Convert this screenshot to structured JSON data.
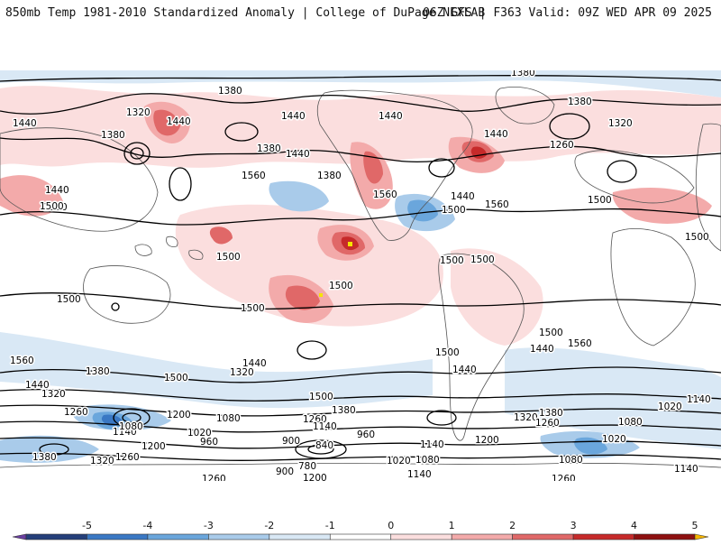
{
  "header": {
    "title_left": "850mb Temp 1981-2010 Standardized Anomaly | College of DuPage NEXLAB",
    "title_right": "06Z GFS | F363 Valid: 09Z WED APR 09 2025"
  },
  "colorbar": {
    "ticks": [
      "-5",
      "-4",
      "-3",
      "-2",
      "-1",
      "0",
      "1",
      "2",
      "3",
      "4",
      "5"
    ],
    "colors": [
      "#6a3fa0",
      "#243f7a",
      "#3a78c4",
      "#6aa6dc",
      "#a9cbea",
      "#d9e8f5",
      "#ffffff",
      "#fbdede",
      "#f3aaaa",
      "#e06868",
      "#c62a2a",
      "#8e1010",
      "#f5b400"
    ]
  },
  "map": {
    "colors": {
      "ocean": "#ffffff",
      "coast": "#555555",
      "contour": "#000000",
      "warm_light": "#fbdede",
      "warm_mid": "#f3aaaa",
      "warm_strong": "#e06868",
      "warm_extreme": "#c62a2a",
      "cold_light": "#d9e8f5",
      "cold_mid": "#a9cbea",
      "cold_strong": "#6aa6dc",
      "cold_extreme": "#3a78c4",
      "max": "#f5e400"
    },
    "contour_labels": [
      "1320",
      "1380",
      "1440",
      "1500",
      "1560",
      "1260",
      "1200",
      "1140",
      "1080",
      "1020",
      "960",
      "900",
      "840",
      "780"
    ]
  }
}
